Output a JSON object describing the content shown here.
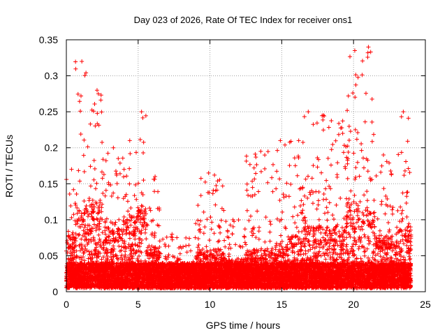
{
  "chart_data": {
    "type": "scatter",
    "title": "Day 023 of 2026, Rate Of TEC Index for receiver ons1",
    "xlabel": "GPS time / hours",
    "ylabel": "ROTI / TECUs",
    "xlim": [
      0,
      25
    ],
    "ylim": [
      0,
      0.35
    ],
    "x_ticks": [
      0,
      5,
      10,
      15,
      20,
      25
    ],
    "y_ticks": [
      0,
      0.05,
      0.1,
      0.15,
      0.2,
      0.25,
      0.3,
      0.35
    ],
    "x_tick_labels": [
      "0",
      "5",
      "10",
      "15",
      "20",
      "25"
    ],
    "y_tick_labels": [
      "0",
      "0.05",
      "0.1",
      "0.15",
      "0.2",
      "0.25",
      "0.3",
      "0.35"
    ],
    "grid": true,
    "marker": "plus",
    "color": "#ff0000",
    "x_range_observed": [
      0,
      24
    ],
    "activity_profile": [
      {
        "x": [
          0.0,
          0.6
        ],
        "peak": 0.17,
        "typical": 0.06
      },
      {
        "x": [
          0.6,
          1.5
        ],
        "peak": 0.32,
        "typical": 0.09
      },
      {
        "x": [
          1.5,
          2.5
        ],
        "peak": 0.28,
        "typical": 0.1
      },
      {
        "x": [
          2.5,
          4.0
        ],
        "peak": 0.2,
        "typical": 0.07
      },
      {
        "x": [
          4.0,
          5.0
        ],
        "peak": 0.21,
        "typical": 0.08
      },
      {
        "x": [
          5.0,
          5.6
        ],
        "peak": 0.25,
        "typical": 0.09
      },
      {
        "x": [
          5.6,
          6.5
        ],
        "peak": 0.16,
        "typical": 0.05
      },
      {
        "x": [
          6.5,
          9.0
        ],
        "peak": 0.08,
        "typical": 0.03
      },
      {
        "x": [
          9.0,
          11.0
        ],
        "peak": 0.165,
        "typical": 0.045
      },
      {
        "x": [
          11.0,
          12.5
        ],
        "peak": 0.1,
        "typical": 0.035
      },
      {
        "x": [
          12.5,
          14.5
        ],
        "peak": 0.195,
        "typical": 0.045
      },
      {
        "x": [
          14.5,
          15.5
        ],
        "peak": 0.21,
        "typical": 0.05
      },
      {
        "x": [
          15.5,
          16.5
        ],
        "peak": 0.21,
        "typical": 0.06
      },
      {
        "x": [
          16.5,
          17.0
        ],
        "peak": 0.25,
        "typical": 0.07
      },
      {
        "x": [
          17.0,
          19.5
        ],
        "peak": 0.245,
        "typical": 0.07
      },
      {
        "x": [
          19.5,
          20.5
        ],
        "peak": 0.335,
        "typical": 0.1
      },
      {
        "x": [
          20.5,
          21.5
        ],
        "peak": 0.34,
        "typical": 0.09
      },
      {
        "x": [
          21.5,
          23.0
        ],
        "peak": 0.19,
        "typical": 0.06
      },
      {
        "x": [
          23.0,
          24.0
        ],
        "peak": 0.25,
        "typical": 0.07
      }
    ],
    "baseline_band": [
      0.005,
      0.04
    ]
  }
}
